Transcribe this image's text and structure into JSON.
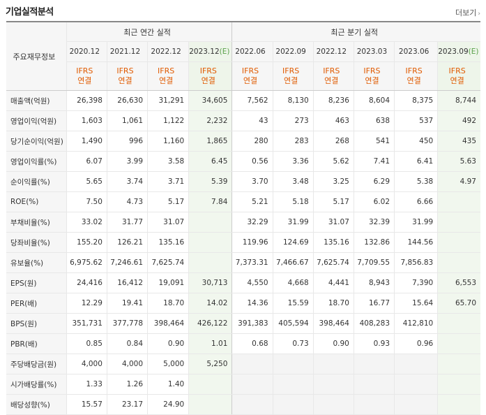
{
  "header": {
    "title": "기업실적분석",
    "more_label": "더보기"
  },
  "table": {
    "corner_label": "주요재무정보",
    "annual_group_label": "최근 연간 실적",
    "quarter_group_label": "최근 분기 실적",
    "annual_periods": [
      "2020.12",
      "2021.12",
      "2022.12",
      "2023.12"
    ],
    "annual_est_mark": "(E)",
    "quarter_periods": [
      "2022.06",
      "2022.09",
      "2022.12",
      "2023.03",
      "2023.06",
      "2023.09"
    ],
    "quarter_est_mark": "(E)",
    "basis_top": "IFRS",
    "basis_bottom": "연결",
    "rows": [
      {
        "label": "매출액(억원)",
        "values": [
          "26,398",
          "26,630",
          "31,291",
          "34,605",
          "7,562",
          "8,130",
          "8,236",
          "8,604",
          "8,375",
          "8,744"
        ]
      },
      {
        "label": "영업이익(억원)",
        "values": [
          "1,603",
          "1,061",
          "1,122",
          "2,232",
          "43",
          "273",
          "463",
          "638",
          "537",
          "492"
        ]
      },
      {
        "label": "당기순이익(억원)",
        "values": [
          "1,490",
          "996",
          "1,160",
          "1,865",
          "280",
          "283",
          "268",
          "541",
          "450",
          "435"
        ]
      },
      {
        "label": "영업이익률(%)",
        "values": [
          "6.07",
          "3.99",
          "3.58",
          "6.45",
          "0.56",
          "3.36",
          "5.62",
          "7.41",
          "6.41",
          "5.63"
        ]
      },
      {
        "label": "순이익률(%)",
        "values": [
          "5.65",
          "3.74",
          "3.71",
          "5.39",
          "3.70",
          "3.48",
          "3.25",
          "6.29",
          "5.38",
          "4.97"
        ]
      },
      {
        "label": "ROE(%)",
        "values": [
          "7.50",
          "4.73",
          "5.17",
          "7.84",
          "5.21",
          "5.18",
          "5.17",
          "6.02",
          "6.66",
          ""
        ]
      },
      {
        "label": "부채비율(%)",
        "values": [
          "33.02",
          "31.77",
          "31.07",
          "",
          "32.29",
          "31.99",
          "31.07",
          "32.39",
          "31.99",
          ""
        ]
      },
      {
        "label": "당좌비율(%)",
        "values": [
          "155.20",
          "126.21",
          "135.16",
          "",
          "119.96",
          "124.69",
          "135.16",
          "132.86",
          "144.56",
          ""
        ]
      },
      {
        "label": "유보율(%)",
        "values": [
          "6,975.62",
          "7,246.61",
          "7,625.74",
          "",
          "7,373.31",
          "7,466.67",
          "7,625.74",
          "7,709.55",
          "7,856.83",
          ""
        ]
      },
      {
        "label": "EPS(원)",
        "values": [
          "24,416",
          "16,412",
          "19,091",
          "30,713",
          "4,550",
          "4,668",
          "4,441",
          "8,943",
          "7,390",
          "6,553"
        ]
      },
      {
        "label": "PER(배)",
        "values": [
          "12.29",
          "19.41",
          "18.70",
          "14.02",
          "14.36",
          "15.59",
          "18.70",
          "16.77",
          "15.64",
          "65.70"
        ]
      },
      {
        "label": "BPS(원)",
        "values": [
          "351,731",
          "377,778",
          "398,464",
          "426,122",
          "391,383",
          "405,594",
          "398,464",
          "408,283",
          "412,810",
          ""
        ]
      },
      {
        "label": "PBR(배)",
        "values": [
          "0.85",
          "0.84",
          "0.90",
          "1.01",
          "0.68",
          "0.73",
          "0.90",
          "0.93",
          "0.96",
          ""
        ]
      },
      {
        "label": "주당배당금(원)",
        "values": [
          "4,000",
          "4,000",
          "5,000",
          "5,250",
          "",
          "",
          "",
          "",
          "",
          ""
        ]
      },
      {
        "label": "시가배당률(%)",
        "values": [
          "1.33",
          "1.26",
          "1.40",
          "",
          "",
          "",
          "",
          "",
          "",
          ""
        ]
      },
      {
        "label": "배당성향(%)",
        "values": [
          "15.57",
          "23.17",
          "24.90",
          "",
          "",
          "",
          "",
          "",
          "",
          ""
        ]
      }
    ]
  }
}
